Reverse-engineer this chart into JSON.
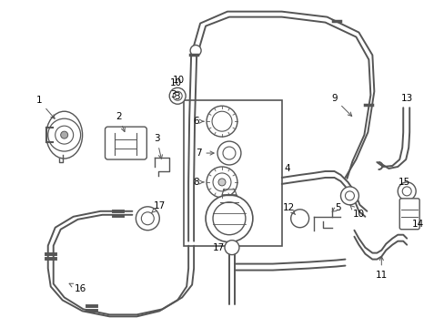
{
  "bg_color": "#ffffff",
  "line_color": "#555555",
  "fig_width": 4.89,
  "fig_height": 3.6,
  "dpi": 100
}
